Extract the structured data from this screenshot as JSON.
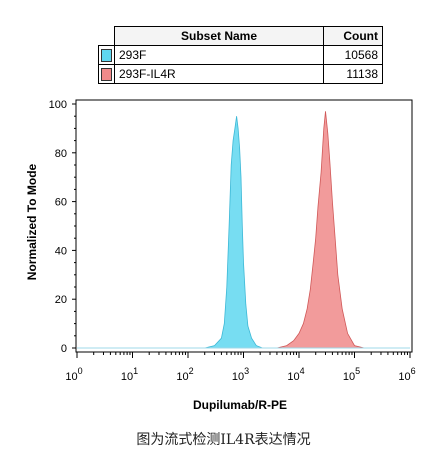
{
  "legend": {
    "header_name": "Subset Name",
    "header_count": "Count",
    "rows": [
      {
        "name": "293F",
        "count": "10568",
        "color": "#5fd7f0"
      },
      {
        "name": "293F-IL4R",
        "count": "11138",
        "color": "#f08a8a"
      }
    ]
  },
  "caption": "图为流式检测IL4R表达情况",
  "chart_data": {
    "type": "area",
    "xlabel": "Dupilumab/R-PE",
    "ylabel": "Normalized To Mode",
    "x_scale": "log",
    "xlim": [
      1,
      1000000
    ],
    "ylim": [
      0,
      100
    ],
    "y_ticks": [
      "0",
      "20",
      "40",
      "60",
      "80",
      "100"
    ],
    "x_ticks": [
      {
        "base": "10",
        "exp": "0"
      },
      {
        "base": "10",
        "exp": "1"
      },
      {
        "base": "10",
        "exp": "2"
      },
      {
        "base": "10",
        "exp": "3"
      },
      {
        "base": "10",
        "exp": "4"
      },
      {
        "base": "10",
        "exp": "5"
      },
      {
        "base": "10",
        "exp": "6"
      }
    ],
    "series": [
      {
        "name": "293F",
        "color": "#5fd7f0",
        "stroke": "#3cb8d6",
        "x": [
          200,
          300,
          400,
          450,
          500,
          550,
          600,
          650,
          700,
          750,
          800,
          850,
          900,
          950,
          1000,
          1100,
          1200,
          1400,
          1700,
          2200
        ],
        "y": [
          0,
          1,
          4,
          10,
          25,
          50,
          75,
          85,
          90,
          95,
          90,
          82,
          70,
          50,
          35,
          18,
          9,
          4,
          1,
          0
        ]
      },
      {
        "name": "293F-IL4R",
        "color": "#f08a8a",
        "stroke": "#d05858",
        "x": [
          4000,
          6000,
          8000,
          10000,
          12000,
          14000,
          16000,
          18000,
          20000,
          22000,
          25000,
          28000,
          30000,
          33000,
          36000,
          40000,
          45000,
          50000,
          60000,
          75000,
          100000,
          150000
        ],
        "y": [
          0,
          1,
          3,
          6,
          10,
          16,
          24,
          35,
          45,
          58,
          72,
          90,
          97,
          88,
          76,
          60,
          44,
          30,
          16,
          6,
          1,
          0
        ]
      }
    ]
  }
}
